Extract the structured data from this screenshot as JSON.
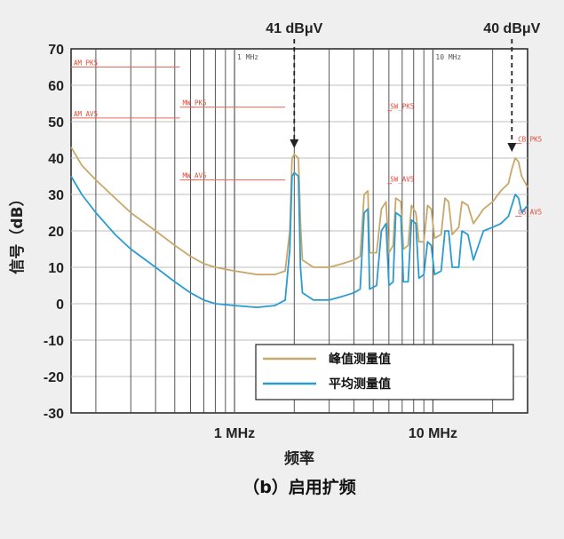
{
  "chart_data": {
    "type": "line",
    "ylabel": "信号（dB）",
    "xlabel": "频率",
    "caption": "（b）启用扩频",
    "x_scale": "log",
    "xlim_mhz": [
      0.15,
      30
    ],
    "ylim": [
      -30,
      70
    ],
    "y_ticks": [
      "70",
      "60",
      "50",
      "40",
      "30",
      "20",
      "10",
      "0",
      "-10",
      "-20",
      "-30"
    ],
    "x_tick_labels": [
      {
        "label": "1 MHz",
        "value": 1
      },
      {
        "label": "10 MHz",
        "value": 10
      }
    ],
    "inner_labels": [
      {
        "label": "1 MHz",
        "value": 1
      },
      {
        "label": "10 MHz",
        "value": 10
      }
    ],
    "annotations": [
      {
        "text": "41 dBμV",
        "x": 2,
        "y": 41
      },
      {
        "text": "40 dBμV",
        "x": 25,
        "y": 40
      }
    ],
    "limit_lines": [
      {
        "label": "AM_PK5",
        "x": [
          0.15,
          0.53
        ],
        "y": 65
      },
      {
        "label": "AM_AV5",
        "x": [
          0.15,
          0.53
        ],
        "y": 51
      },
      {
        "label": "MW_PK5",
        "x": [
          0.53,
          1.8
        ],
        "y": 54
      },
      {
        "label": "MW_AV5",
        "x": [
          0.53,
          1.8
        ],
        "y": 34
      },
      {
        "label": "SW_PK5",
        "x": [
          5.9,
          6.2
        ],
        "y": 53
      },
      {
        "label": "SW_AV5",
        "x": [
          5.9,
          6.2
        ],
        "y": 33
      },
      {
        "label": "CB_PK5",
        "x": [
          26,
          28
        ],
        "y": 44
      },
      {
        "label": "CB_AV5",
        "x": [
          26,
          28
        ],
        "y": 24
      }
    ],
    "legend_position": "bottom-right",
    "grid": true,
    "series": [
      {
        "name": "峰值测量值",
        "color": "#c8a86a",
        "points": [
          [
            0.15,
            43
          ],
          [
            0.17,
            38
          ],
          [
            0.2,
            34
          ],
          [
            0.25,
            29
          ],
          [
            0.3,
            25
          ],
          [
            0.4,
            20
          ],
          [
            0.5,
            16
          ],
          [
            0.6,
            13
          ],
          [
            0.7,
            11
          ],
          [
            0.8,
            10
          ],
          [
            1,
            9
          ],
          [
            1.3,
            8
          ],
          [
            1.6,
            8
          ],
          [
            1.8,
            9
          ],
          [
            1.9,
            20
          ],
          [
            1.95,
            40
          ],
          [
            2,
            41
          ],
          [
            2.1,
            40
          ],
          [
            2.15,
            22
          ],
          [
            2.2,
            12
          ],
          [
            2.5,
            10
          ],
          [
            3,
            10
          ],
          [
            3.5,
            11
          ],
          [
            4,
            12
          ],
          [
            4.3,
            13
          ],
          [
            4.5,
            30
          ],
          [
            4.7,
            31
          ],
          [
            4.8,
            14
          ],
          [
            5.2,
            14
          ],
          [
            5.5,
            26
          ],
          [
            5.8,
            28
          ],
          [
            6,
            14
          ],
          [
            6.3,
            16
          ],
          [
            6.5,
            29
          ],
          [
            6.9,
            28
          ],
          [
            7.1,
            15
          ],
          [
            7.5,
            16
          ],
          [
            7.8,
            27
          ],
          [
            8.2,
            25
          ],
          [
            8.5,
            17
          ],
          [
            9,
            17
          ],
          [
            9.4,
            27
          ],
          [
            9.8,
            26
          ],
          [
            10.2,
            18
          ],
          [
            11,
            19
          ],
          [
            11.5,
            29
          ],
          [
            12,
            28
          ],
          [
            12.5,
            19
          ],
          [
            13.5,
            21
          ],
          [
            14,
            28
          ],
          [
            15,
            27
          ],
          [
            16,
            22
          ],
          [
            18,
            26
          ],
          [
            20,
            28
          ],
          [
            22,
            31
          ],
          [
            24,
            33
          ],
          [
            25,
            37
          ],
          [
            26,
            40
          ],
          [
            27,
            39
          ],
          [
            28,
            35
          ],
          [
            30,
            32
          ]
        ]
      },
      {
        "name": "平均测量值",
        "color": "#2b9bd1",
        "points": [
          [
            0.15,
            35
          ],
          [
            0.17,
            30
          ],
          [
            0.2,
            25
          ],
          [
            0.25,
            19
          ],
          [
            0.3,
            15
          ],
          [
            0.4,
            10
          ],
          [
            0.5,
            6
          ],
          [
            0.6,
            3
          ],
          [
            0.7,
            1
          ],
          [
            0.8,
            0
          ],
          [
            1,
            -0.5
          ],
          [
            1.3,
            -1
          ],
          [
            1.6,
            -0.5
          ],
          [
            1.8,
            1
          ],
          [
            1.9,
            15
          ],
          [
            1.95,
            35
          ],
          [
            2,
            36
          ],
          [
            2.1,
            35
          ],
          [
            2.15,
            10
          ],
          [
            2.2,
            3
          ],
          [
            2.5,
            1
          ],
          [
            3,
            1
          ],
          [
            3.5,
            2
          ],
          [
            4,
            3
          ],
          [
            4.3,
            4
          ],
          [
            4.5,
            25
          ],
          [
            4.7,
            26
          ],
          [
            4.8,
            4
          ],
          [
            5.2,
            5
          ],
          [
            5.5,
            20
          ],
          [
            5.8,
            22
          ],
          [
            6,
            5
          ],
          [
            6.3,
            6
          ],
          [
            6.5,
            25
          ],
          [
            6.9,
            24
          ],
          [
            7.1,
            6
          ],
          [
            7.5,
            6
          ],
          [
            7.8,
            23
          ],
          [
            8.2,
            22
          ],
          [
            8.5,
            7
          ],
          [
            9,
            8
          ],
          [
            9.4,
            17
          ],
          [
            9.8,
            16
          ],
          [
            10.2,
            8
          ],
          [
            11,
            9
          ],
          [
            11.5,
            20
          ],
          [
            12,
            20
          ],
          [
            12.5,
            10
          ],
          [
            13.5,
            10
          ],
          [
            14,
            20
          ],
          [
            15,
            19
          ],
          [
            16,
            12
          ],
          [
            18,
            20
          ],
          [
            20,
            21
          ],
          [
            22,
            22
          ],
          [
            24,
            24
          ],
          [
            25,
            27
          ],
          [
            26,
            30
          ],
          [
            27,
            29
          ],
          [
            28,
            25
          ],
          [
            30,
            27
          ]
        ]
      }
    ]
  }
}
